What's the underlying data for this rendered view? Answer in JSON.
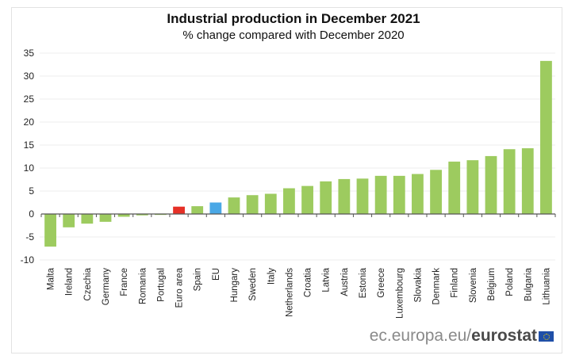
{
  "chart_data": {
    "type": "bar",
    "title": "Industrial production in December 2021",
    "subtitle": "% change compared with December 2020",
    "xlabel": "",
    "ylabel": "",
    "ylim": [
      -10,
      35
    ],
    "yticks": [
      35,
      30,
      25,
      20,
      15,
      10,
      5,
      0,
      -5,
      -10
    ],
    "grid": true,
    "legend": "none",
    "categories": [
      "Malta",
      "Ireland",
      "Czechia",
      "Germany",
      "France",
      "Romania",
      "Portugal",
      "Euro area",
      "Spain",
      "EU",
      "Hungary",
      "Sweden",
      "Italy",
      "Netherlands",
      "Croatia",
      "Latvia",
      "Austria",
      "Estonia",
      "Greece",
      "Luxembourg",
      "Slovakia",
      "Denmark",
      "Finland",
      "Slovenia",
      "Belgium",
      "Poland",
      "Bulgaria",
      "Lithuania"
    ],
    "values": [
      -7.1,
      -2.9,
      -2.1,
      -1.7,
      -0.6,
      -0.3,
      -0.2,
      1.6,
      1.7,
      2.5,
      3.6,
      4.1,
      4.4,
      5.6,
      6.1,
      7.1,
      7.6,
      7.7,
      8.3,
      8.3,
      8.7,
      9.6,
      11.4,
      11.7,
      12.6,
      14.1,
      14.3,
      33.3
    ],
    "bar_kinds": [
      "country",
      "country",
      "country",
      "country",
      "country",
      "country",
      "country",
      "euro_area",
      "country",
      "eu",
      "country",
      "country",
      "country",
      "country",
      "country",
      "country",
      "country",
      "country",
      "country",
      "country",
      "country",
      "country",
      "country",
      "country",
      "country",
      "country",
      "country",
      "country"
    ],
    "colors": {
      "country": "#9dcb5f",
      "euro_area": "#e63027",
      "eu": "#4aa8e6",
      "grid": "#ececec",
      "axis": "#555555"
    }
  },
  "footer": {
    "source_prefix": "ec.europa.eu/",
    "source_brand": "eurostat",
    "flag_icon": "eu-flag-icon"
  }
}
